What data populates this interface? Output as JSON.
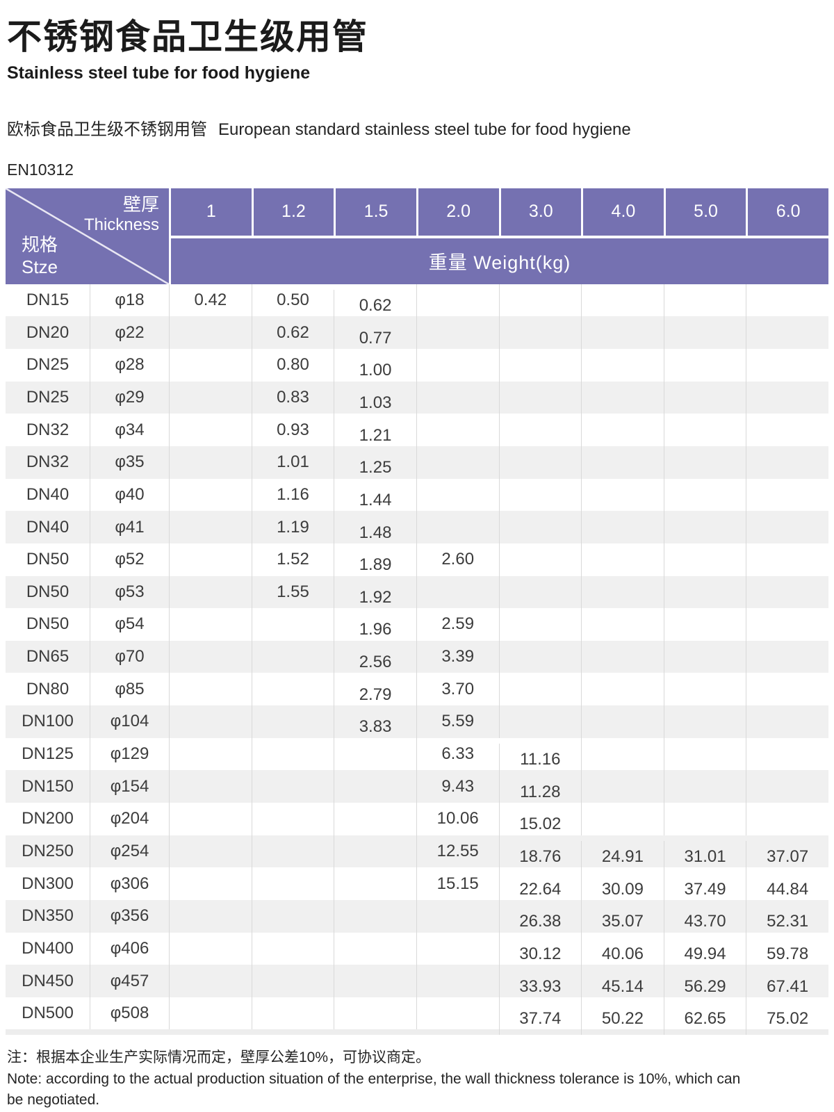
{
  "header": {
    "title_cn": "不锈钢食品卫生级用管",
    "title_en": "Stainless steel tube for food hygiene",
    "standard_cn": "欧标食品卫生级不锈钢用管",
    "standard_en": "European standard stainless steel tube for food hygiene",
    "standard_code": "EN10312"
  },
  "table": {
    "corner": {
      "top_cn": "壁厚",
      "top_en": "Thickness",
      "bottom_cn": "规格",
      "bottom_en": "Stze"
    },
    "thickness_columns": [
      "1",
      "1.2",
      "1.5",
      "2.0",
      "3.0",
      "4.0",
      "5.0",
      "6.0"
    ],
    "weight_header": "重量 Weight(kg)",
    "rows": [
      {
        "size": "DN15",
        "dia": "φ18",
        "weights": [
          "0.42",
          "0.50",
          "0.62",
          null,
          null,
          null,
          null,
          null
        ]
      },
      {
        "size": "DN20",
        "dia": "φ22",
        "weights": [
          null,
          "0.62",
          "0.77",
          null,
          null,
          null,
          null,
          null
        ]
      },
      {
        "size": "DN25",
        "dia": "φ28",
        "weights": [
          null,
          "0.80",
          "1.00",
          null,
          null,
          null,
          null,
          null
        ]
      },
      {
        "size": "DN25",
        "dia": "φ29",
        "weights": [
          null,
          "0.83",
          "1.03",
          null,
          null,
          null,
          null,
          null
        ]
      },
      {
        "size": "DN32",
        "dia": "φ34",
        "weights": [
          null,
          "0.93",
          "1.21",
          null,
          null,
          null,
          null,
          null
        ]
      },
      {
        "size": "DN32",
        "dia": "φ35",
        "weights": [
          null,
          "1.01",
          "1.25",
          null,
          null,
          null,
          null,
          null
        ]
      },
      {
        "size": "DN40",
        "dia": "φ40",
        "weights": [
          null,
          "1.16",
          "1.44",
          null,
          null,
          null,
          null,
          null
        ]
      },
      {
        "size": "DN40",
        "dia": "φ41",
        "weights": [
          null,
          "1.19",
          "1.48",
          null,
          null,
          null,
          null,
          null
        ]
      },
      {
        "size": "DN50",
        "dia": "φ52",
        "weights": [
          null,
          "1.52",
          "1.89",
          "2.60",
          null,
          null,
          null,
          null
        ]
      },
      {
        "size": "DN50",
        "dia": "φ53",
        "weights": [
          null,
          "1.55",
          "1.92",
          null,
          null,
          null,
          null,
          null
        ]
      },
      {
        "size": "DN50",
        "dia": "φ54",
        "weights": [
          null,
          null,
          "1.96",
          "2.59",
          null,
          null,
          null,
          null
        ]
      },
      {
        "size": "DN65",
        "dia": "φ70",
        "weights": [
          null,
          null,
          "2.56",
          "3.39",
          null,
          null,
          null,
          null
        ]
      },
      {
        "size": "DN80",
        "dia": "φ85",
        "weights": [
          null,
          null,
          "2.79",
          "3.70",
          null,
          null,
          null,
          null
        ]
      },
      {
        "size": "DN100",
        "dia": "φ104",
        "weights": [
          null,
          null,
          "3.83",
          "5.59",
          null,
          null,
          null,
          null
        ]
      },
      {
        "size": "DN125",
        "dia": "φ129",
        "weights": [
          null,
          null,
          null,
          "6.33",
          "11.16",
          null,
          null,
          null
        ]
      },
      {
        "size": "DN150",
        "dia": "φ154",
        "weights": [
          null,
          null,
          null,
          "9.43",
          "11.28",
          null,
          null,
          null
        ]
      },
      {
        "size": "DN200",
        "dia": "φ204",
        "weights": [
          null,
          null,
          null,
          "10.06",
          "15.02",
          null,
          null,
          null
        ]
      },
      {
        "size": "DN250",
        "dia": "φ254",
        "weights": [
          null,
          null,
          null,
          "12.55",
          "18.76",
          "24.91",
          "31.01",
          "37.07"
        ]
      },
      {
        "size": "DN300",
        "dia": "φ306",
        "weights": [
          null,
          null,
          null,
          "15.15",
          "22.64",
          "30.09",
          "37.49",
          "44.84"
        ]
      },
      {
        "size": "DN350",
        "dia": "φ356",
        "weights": [
          null,
          null,
          null,
          null,
          "26.38",
          "35.07",
          "43.70",
          "52.31"
        ]
      },
      {
        "size": "DN400",
        "dia": "φ406",
        "weights": [
          null,
          null,
          null,
          null,
          "30.12",
          "40.06",
          "49.94",
          "59.78"
        ]
      },
      {
        "size": "DN450",
        "dia": "φ457",
        "weights": [
          null,
          null,
          null,
          null,
          "33.93",
          "45.14",
          "56.29",
          "67.41"
        ]
      },
      {
        "size": "DN500",
        "dia": "φ508",
        "weights": [
          null,
          null,
          null,
          null,
          "37.74",
          "50.22",
          "62.65",
          "75.02"
        ]
      }
    ]
  },
  "notes": {
    "cn": "注：根据本企业生产实际情况而定，壁厚公差10%，可协议商定。",
    "en": "Note: according to the actual production situation of the enterprise, the wall thickness tolerance is 10%, which can be negotiated."
  },
  "colors": {
    "header_purple": "#7571b1",
    "row_alt": "#f0f0f0",
    "divider": "#d9d9d9",
    "text": "#3c3c3c"
  }
}
